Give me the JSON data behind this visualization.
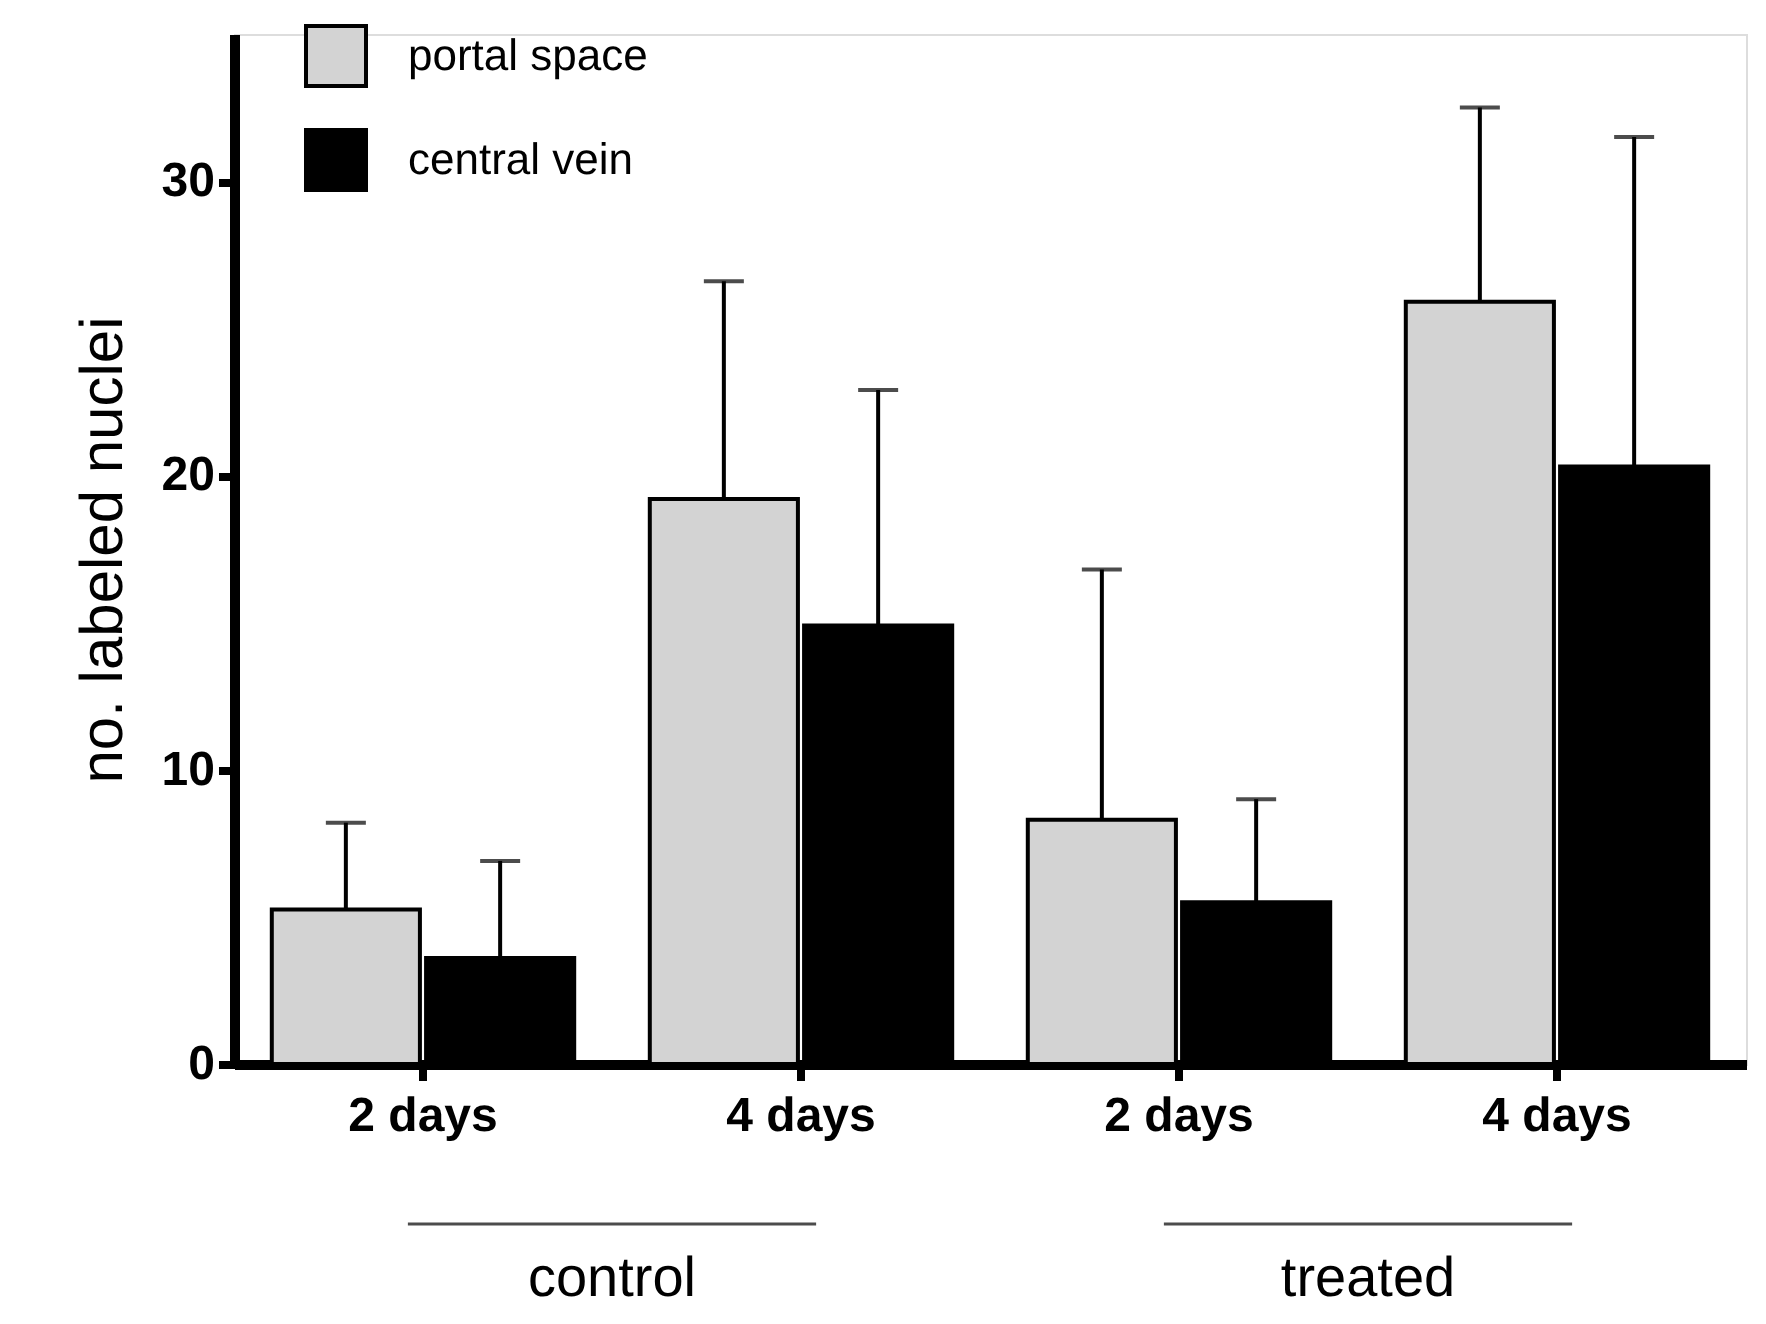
{
  "chart_data": {
    "type": "bar",
    "ylabel": "no. labeled nuclei",
    "categories": [
      "2 days",
      "4 days",
      "2 days",
      "4 days"
    ],
    "series": [
      {
        "name": "portal space",
        "color": "#d3d3d3",
        "values": [
          5.25,
          19.2,
          8.3,
          25.9
        ],
        "errors": [
          [
            5.25,
            8.2
          ],
          [
            19.2,
            26.6
          ],
          [
            8.3,
            16.8
          ],
          [
            25.9,
            32.5
          ]
        ]
      },
      {
        "name": "central vein",
        "color": "#000000",
        "values": [
          3.6,
          14.9,
          5.5,
          20.3
        ],
        "errors": [
          [
            3.6,
            6.9
          ],
          [
            14.9,
            22.9
          ],
          [
            5.5,
            9.0
          ],
          [
            20.3,
            31.5
          ]
        ]
      }
    ],
    "ylim": [
      0,
      35
    ],
    "yticks": [
      0,
      10,
      20,
      30
    ],
    "grid": false,
    "legend": "top left",
    "annotations": [
      "control",
      "treated"
    ]
  }
}
